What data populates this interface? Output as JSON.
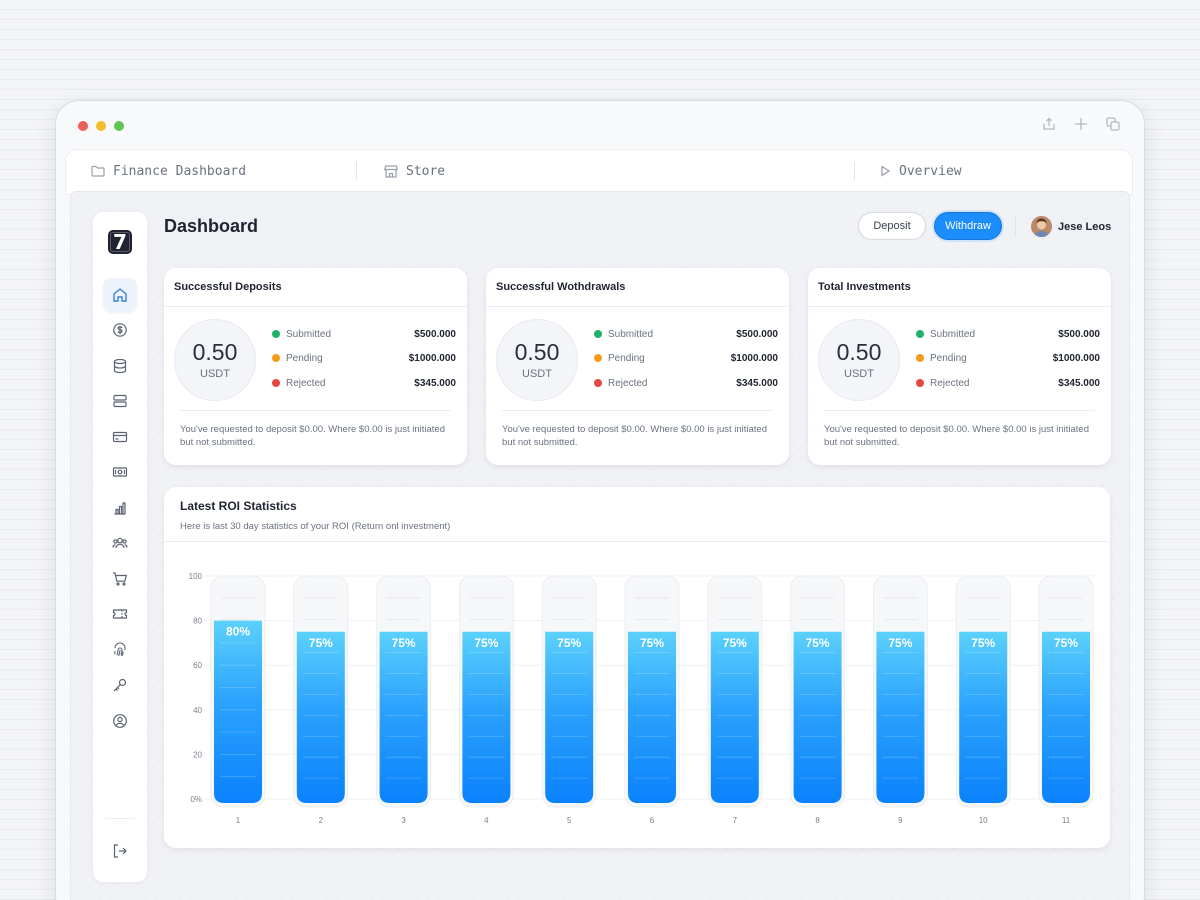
{
  "tabs": [
    {
      "label": "Finance Dashboard",
      "icon": "folder-icon"
    },
    {
      "label": "Store",
      "icon": "store-icon"
    },
    {
      "label": "Overview",
      "icon": "play-icon"
    }
  ],
  "window_actions": [
    "share-icon",
    "plus-icon",
    "copy-icon"
  ],
  "sidebar": {
    "logo": "7",
    "items": [
      {
        "icon": "home-icon",
        "active": true
      },
      {
        "icon": "dollar-icon"
      },
      {
        "icon": "database-icon"
      },
      {
        "icon": "server-icon"
      },
      {
        "icon": "credit-card-icon"
      },
      {
        "icon": "cash-icon"
      },
      {
        "icon": "bar-chart-icon"
      },
      {
        "icon": "users-icon"
      },
      {
        "icon": "cart-icon"
      },
      {
        "icon": "ticket-icon"
      },
      {
        "icon": "fingerprint-icon"
      },
      {
        "icon": "key-icon"
      },
      {
        "icon": "user-circle-icon"
      }
    ],
    "bottom_icon": "logout-icon"
  },
  "header": {
    "title": "Dashboard",
    "deposit_label": "Deposit",
    "withdraw_label": "Withdraw",
    "user_name": "Jese Leos"
  },
  "colors": {
    "accent": "#1d8dfc",
    "submitted": "#21b26a",
    "pending": "#f39c1a",
    "rejected": "#e5483f"
  },
  "cards": [
    {
      "title": "Successful Deposits",
      "value": "0.50",
      "unit": "USDT",
      "stats": [
        {
          "label": "Submitted",
          "value": "$500.000"
        },
        {
          "label": "Pending",
          "value": "$1000.000"
        },
        {
          "label": "Rejected",
          "value": "$345.000"
        }
      ],
      "note": "You've requested to deposit $0.00. Where $0.00 is just initiated but not submitted."
    },
    {
      "title": "Successful Wothdrawals",
      "value": "0.50",
      "unit": "USDT",
      "stats": [
        {
          "label": "Submitted",
          "value": "$500.000"
        },
        {
          "label": "Pending",
          "value": "$1000.000"
        },
        {
          "label": "Rejected",
          "value": "$345.000"
        }
      ],
      "note": "You've requested to deposit $0.00. Where $0.00 is just initiated but not submitted."
    },
    {
      "title": "Total Investments",
      "value": "0.50",
      "unit": "USDT",
      "stats": [
        {
          "label": "Submitted",
          "value": "$500.000"
        },
        {
          "label": "Pending",
          "value": "$1000.000"
        },
        {
          "label": "Rejected",
          "value": "$345.000"
        }
      ],
      "note": "You've requested to deposit $0.00. Where $0.00 is just initiated but not submitted."
    }
  ],
  "roi": {
    "title": "Latest ROI Statistics",
    "subtitle": "Here is last 30 day statistics of your ROI (Return onl investment)"
  },
  "chart_data": {
    "type": "bar",
    "categories": [
      "1",
      "2",
      "3",
      "4",
      "5",
      "6",
      "7",
      "8",
      "9",
      "10",
      "11"
    ],
    "values": [
      80,
      75,
      75,
      75,
      75,
      75,
      75,
      75,
      75,
      75,
      75
    ],
    "data_labels": [
      "80%",
      "75%",
      "75%",
      "75%",
      "75%",
      "75%",
      "75%",
      "75%",
      "75%",
      "75%",
      "75%"
    ],
    "y_ticks": [
      "0%",
      "20",
      "40",
      "60",
      "80",
      "100"
    ],
    "ylim": [
      0,
      100
    ],
    "title": "",
    "xlabel": "",
    "ylabel": ""
  }
}
